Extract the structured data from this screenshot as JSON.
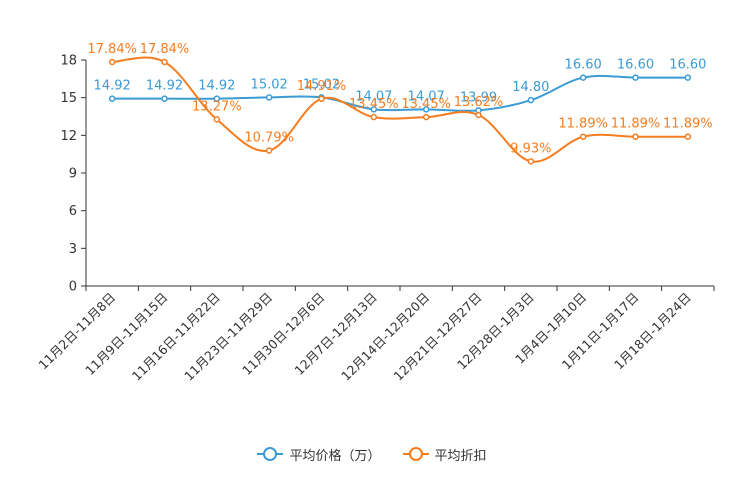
{
  "chart_data": {
    "type": "line",
    "categories": [
      "11月2日-11月8日",
      "11月9日-11月15日",
      "11月16日-11月22日",
      "11月23日-11月29日",
      "11月30日-12月6日",
      "12月7日-12月13日",
      "12月14日-12月20日",
      "12月21日-12月27日",
      "12月28日-1月3日",
      "1月4日-1月10日",
      "1月11日-1月17日",
      "1月18日-1月24日"
    ],
    "series": [
      {
        "name": "平均价格（万）",
        "color": "#3a9bd5",
        "values": [
          14.92,
          14.92,
          14.92,
          15.02,
          15.02,
          14.07,
          14.07,
          13.99,
          14.8,
          16.6,
          16.6,
          16.6
        ],
        "labels": [
          "14.92",
          "14.92",
          "14.92",
          "15.02",
          "15.02",
          "14.07",
          "14.07",
          "13.99",
          "14.80",
          "16.60",
          "16.60",
          "16.60"
        ]
      },
      {
        "name": "平均折扣",
        "color": "#f57c1f",
        "values": [
          17.84,
          17.84,
          13.27,
          10.79,
          14.91,
          13.45,
          13.45,
          13.62,
          9.93,
          11.89,
          11.89,
          11.89
        ],
        "labels": [
          "17.84%",
          "17.84%",
          "13.27%",
          "10.79%",
          "14.91%",
          "13.45%",
          "13.45%",
          "13.62%",
          "9.93%",
          "11.89%",
          "11.89%",
          "11.89%"
        ]
      }
    ],
    "yticks": [
      0,
      3,
      6,
      9,
      12,
      15,
      18
    ],
    "ylim": [
      0,
      18
    ],
    "title": "",
    "xlabel": "",
    "ylabel": "",
    "legend_position": "bottom-center"
  },
  "legend": {
    "items": [
      {
        "label": "平均价格（万）",
        "color": "#3a9bd5"
      },
      {
        "label": "平均折扣",
        "color": "#f57c1f"
      }
    ]
  }
}
